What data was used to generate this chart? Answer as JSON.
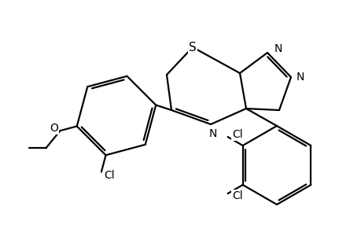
{
  "background_color": "#ffffff",
  "line_color": "#000000",
  "line_width": 1.6,
  "figsize": [
    4.6,
    3.0
  ],
  "dpi": 100,
  "xlim": [
    0,
    460
  ],
  "ylim": [
    0,
    300
  ]
}
